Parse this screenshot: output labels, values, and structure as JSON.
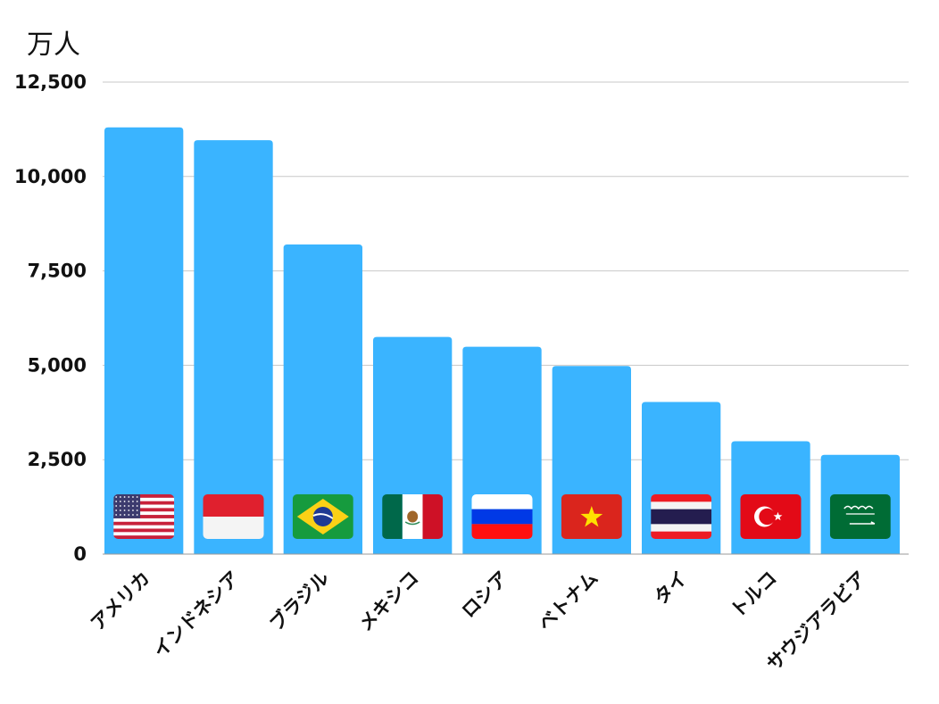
{
  "chart_data": {
    "type": "bar",
    "unit_label": "万人",
    "categories": [
      "アメリカ",
      "インドネシア",
      "ブラジル",
      "メキシコ",
      "ロシア",
      "ベトナム",
      "タイ",
      "トルコ",
      "サウジアラビア"
    ],
    "values": [
      11300,
      10960,
      8200,
      5750,
      5490,
      4980,
      4030,
      2990,
      2630
    ],
    "flag_icons": [
      "usa-flag-icon",
      "indonesia-flag-icon",
      "brazil-flag-icon",
      "mexico-flag-icon",
      "russia-flag-icon",
      "vietnam-flag-icon",
      "thailand-flag-icon",
      "turkey-flag-icon",
      "saudi-arabia-flag-icon"
    ],
    "yticks": [
      "0",
      "2,500",
      "5,000",
      "7,500",
      "10,000",
      "12,500"
    ],
    "ylim": [
      0,
      12500
    ],
    "grid": true,
    "bar_color": "#3ab4ff"
  }
}
